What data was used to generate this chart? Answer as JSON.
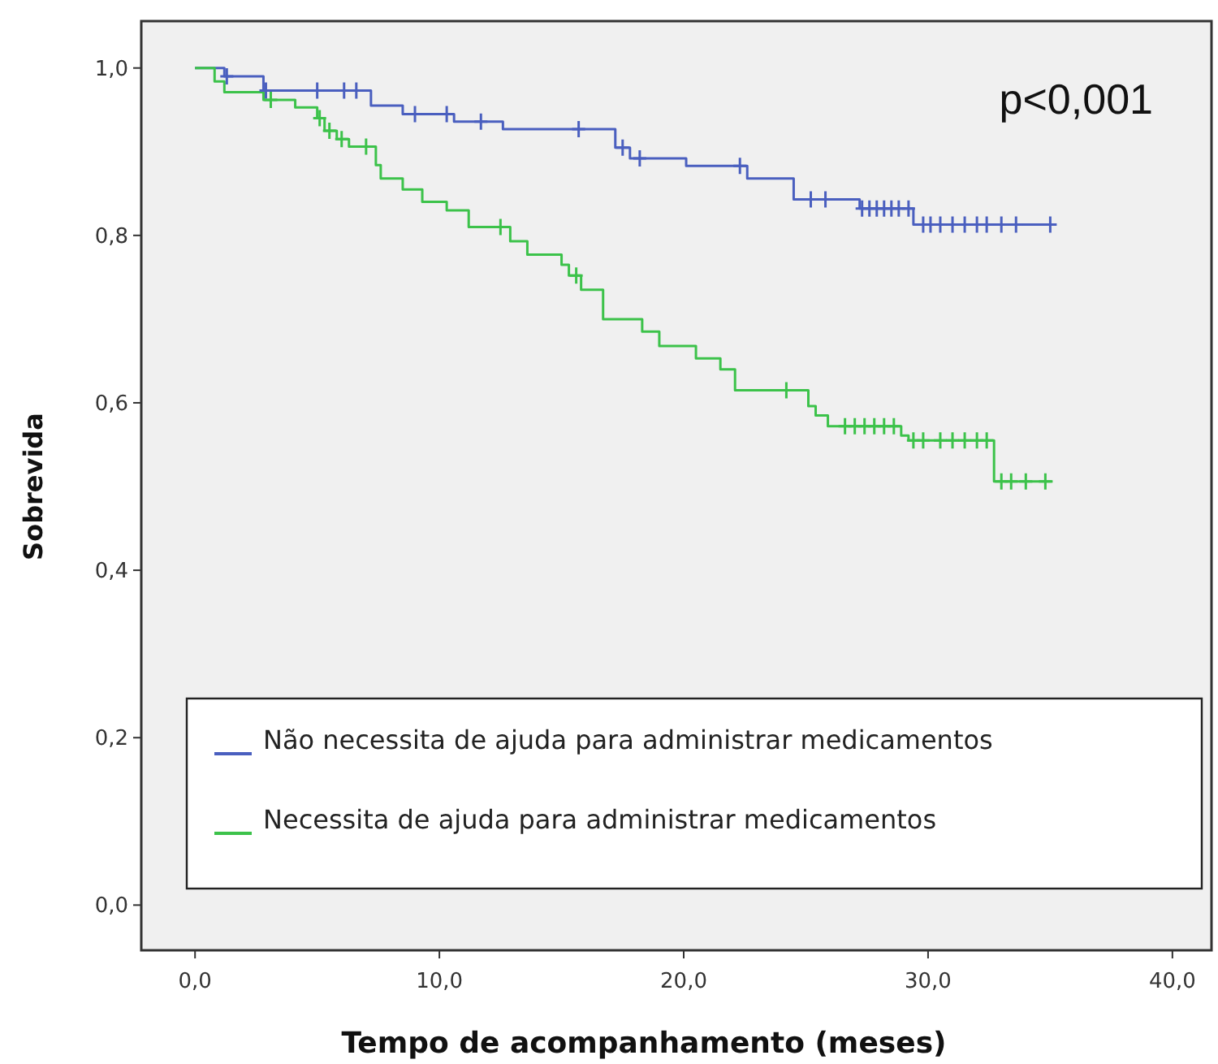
{
  "chart_data": {
    "type": "step",
    "xlabel": "Tempo de acompanhamento (meses)",
    "ylabel": "Sobrevida",
    "annotations": [
      "p<0,001"
    ],
    "xlim": [
      -2.2,
      41.6
    ],
    "ylim": [
      -0.054,
      1.056
    ],
    "xticks": [
      {
        "value": 0,
        "label": "0,0"
      },
      {
        "value": 10,
        "label": "10,0"
      },
      {
        "value": 20,
        "label": "20,0"
      },
      {
        "value": 30,
        "label": "30,0"
      },
      {
        "value": 40,
        "label": "40,0"
      }
    ],
    "yticks": [
      {
        "value": 0,
        "label": "0,0"
      },
      {
        "value": 0.2,
        "label": "0,2"
      },
      {
        "value": 0.4,
        "label": "0,4"
      },
      {
        "value": 0.6,
        "label": "0,6"
      },
      {
        "value": 0.8,
        "label": "0,8"
      },
      {
        "value": 1,
        "label": "1,0"
      }
    ],
    "grid": false,
    "legend": "bottom",
    "line_style": "solid",
    "series": [
      {
        "name": "Não necessita de ajuda para administrar medicamentos",
        "color": "#4a5fbf",
        "x": [
          0,
          1.2,
          2.8,
          7.2,
          8.5,
          10.6,
          12.6,
          17.2,
          17.8,
          20.1,
          22.6,
          24.5,
          27.2,
          29.4,
          35.1
        ],
        "values": [
          1,
          0.99,
          0.973,
          0.955,
          0.945,
          0.936,
          0.927,
          0.905,
          0.892,
          0.883,
          0.868,
          0.843,
          0.832,
          0.813,
          0.813
        ]
      },
      {
        "name": "Necessita de ajuda para administrar medicamentos",
        "color": "#3cc24a",
        "x": [
          0,
          0.8,
          1.2,
          2.8,
          4.1,
          5.0,
          5.3,
          5.8,
          6.3,
          7.4,
          7.6,
          8.5,
          9.3,
          10.3,
          11.2,
          12.9,
          13.6,
          15.0,
          15.3,
          15.8,
          16.7,
          18.3,
          19.0,
          20.5,
          21.5,
          22.1,
          25.1,
          25.4,
          25.9,
          28.9,
          29.2,
          32.7,
          35.1
        ],
        "values": [
          1,
          0.984,
          0.971,
          0.962,
          0.953,
          0.94,
          0.925,
          0.915,
          0.906,
          0.884,
          0.868,
          0.855,
          0.84,
          0.83,
          0.81,
          0.793,
          0.777,
          0.765,
          0.752,
          0.735,
          0.7,
          0.685,
          0.668,
          0.653,
          0.64,
          0.615,
          0.596,
          0.585,
          0.572,
          0.561,
          0.555,
          0.506,
          0.506
        ]
      },
      {
        "type": "scatter",
        "marker": "cross",
        "color": "#4a5fbf",
        "x": [
          1.3,
          2.9,
          5.0,
          6.1,
          6.6,
          9.0,
          10.3,
          11.7,
          15.7,
          17.5,
          18.2,
          22.3,
          25.2,
          25.8,
          27.3,
          27.6,
          27.9,
          28.2,
          28.5,
          28.8,
          29.2,
          29.8,
          30.1,
          30.5,
          31.0,
          31.5,
          32.0,
          32.4,
          33.0,
          33.6,
          35.0
        ],
        "values": [
          0.99,
          0.973,
          0.973,
          0.973,
          0.973,
          0.945,
          0.945,
          0.936,
          0.927,
          0.905,
          0.892,
          0.883,
          0.843,
          0.843,
          0.832,
          0.832,
          0.832,
          0.832,
          0.832,
          0.832,
          0.832,
          0.813,
          0.813,
          0.813,
          0.813,
          0.813,
          0.813,
          0.813,
          0.813,
          0.813,
          0.813
        ]
      },
      {
        "type": "scatter",
        "marker": "cross",
        "color": "#3cc24a",
        "x": [
          3.1,
          5.1,
          5.5,
          6.0,
          7.0,
          12.5,
          15.6,
          24.2,
          26.6,
          27.0,
          27.4,
          27.8,
          28.2,
          28.6,
          29.4,
          29.8,
          30.5,
          31.0,
          31.5,
          32.0,
          32.4,
          33.0,
          33.4,
          34.0,
          34.8
        ],
        "values": [
          0.962,
          0.94,
          0.925,
          0.915,
          0.906,
          0.81,
          0.752,
          0.615,
          0.572,
          0.572,
          0.572,
          0.572,
          0.572,
          0.572,
          0.555,
          0.555,
          0.555,
          0.555,
          0.555,
          0.555,
          0.555,
          0.506,
          0.506,
          0.506,
          0.506
        ]
      }
    ]
  }
}
